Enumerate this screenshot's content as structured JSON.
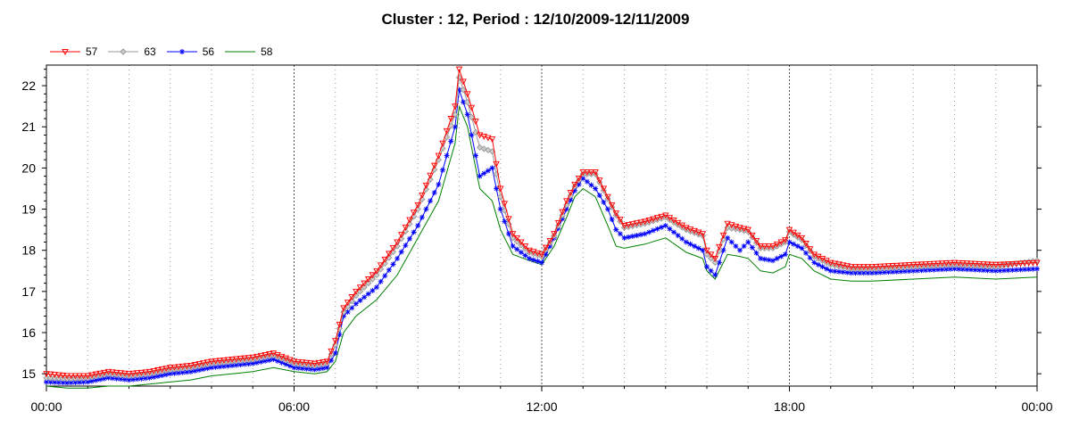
{
  "chart_data": {
    "type": "line",
    "title": "Cluster : 12, Period : 12/10/2009-12/11/2009",
    "xlabel": "",
    "ylabel": "",
    "x_ticks": [
      "00:00",
      "06:00",
      "12:00",
      "18:00",
      "00:00"
    ],
    "y_ticks": [
      15,
      16,
      17,
      18,
      19,
      20,
      21,
      22
    ],
    "xlim_hours": [
      0,
      24
    ],
    "ylim": [
      14.7,
      22.5
    ],
    "grid": true,
    "legend_position": "top-left",
    "x_hours": [
      0,
      0.5,
      1,
      1.5,
      2,
      2.5,
      3,
      3.5,
      4,
      4.5,
      5,
      5.5,
      6,
      6.5,
      6.8,
      7,
      7.2,
      7.5,
      8,
      8.5,
      9,
      9.5,
      9.9,
      10,
      10.2,
      10.5,
      10.8,
      11,
      11.3,
      11.7,
      12,
      12.3,
      12.6,
      12.8,
      13,
      13.3,
      13.6,
      13.8,
      14,
      14.5,
      15,
      15.5,
      15.9,
      16,
      16.2,
      16.5,
      16.8,
      17,
      17.3,
      17.6,
      17.9,
      18,
      18.3,
      18.6,
      19,
      19.5,
      20,
      21,
      22,
      23,
      24
    ],
    "series": [
      {
        "name": "57",
        "color": "#ff0000",
        "marker": "triangle-down",
        "values": [
          15.0,
          14.95,
          14.95,
          15.05,
          15.0,
          15.05,
          15.15,
          15.2,
          15.3,
          15.35,
          15.4,
          15.5,
          15.3,
          15.25,
          15.3,
          15.8,
          16.6,
          17.0,
          17.5,
          18.2,
          19.1,
          20.3,
          21.5,
          22.4,
          21.8,
          20.8,
          20.7,
          19.5,
          18.4,
          18.0,
          17.9,
          18.4,
          19.2,
          19.6,
          19.9,
          19.9,
          19.3,
          18.9,
          18.6,
          18.7,
          18.85,
          18.55,
          18.4,
          18.0,
          17.8,
          18.65,
          18.55,
          18.5,
          18.1,
          18.1,
          18.25,
          18.5,
          18.3,
          17.9,
          17.7,
          17.6,
          17.6,
          17.65,
          17.7,
          17.65,
          17.7
        ]
      },
      {
        "name": "63",
        "color": "#999999",
        "marker": "diamond",
        "values": [
          14.9,
          14.88,
          14.9,
          15.0,
          14.95,
          15.0,
          15.1,
          15.15,
          15.25,
          15.3,
          15.35,
          15.45,
          15.25,
          15.2,
          15.25,
          15.7,
          16.5,
          16.9,
          17.4,
          18.1,
          19.0,
          20.2,
          21.3,
          22.2,
          21.6,
          20.5,
          20.4,
          19.3,
          18.3,
          17.95,
          17.85,
          18.35,
          19.1,
          19.55,
          19.85,
          19.85,
          19.25,
          18.85,
          18.55,
          18.65,
          18.8,
          18.5,
          18.35,
          17.9,
          17.7,
          18.55,
          18.5,
          18.45,
          18.05,
          18.05,
          18.2,
          18.45,
          18.25,
          17.85,
          17.65,
          17.55,
          17.55,
          17.6,
          17.65,
          17.6,
          17.75
        ]
      },
      {
        "name": "56",
        "color": "#0000ff",
        "marker": "star",
        "values": [
          14.8,
          14.78,
          14.8,
          14.9,
          14.85,
          14.9,
          15.0,
          15.05,
          15.15,
          15.2,
          15.25,
          15.35,
          15.15,
          15.1,
          15.15,
          15.5,
          16.4,
          16.7,
          17.1,
          17.8,
          18.6,
          19.6,
          21.0,
          21.9,
          21.3,
          19.8,
          20.0,
          19.0,
          18.1,
          17.8,
          17.7,
          18.3,
          19.0,
          19.45,
          19.75,
          19.5,
          19.0,
          18.5,
          18.3,
          18.4,
          18.6,
          18.2,
          18.0,
          17.6,
          17.4,
          18.3,
          18.0,
          18.2,
          17.8,
          17.75,
          17.9,
          18.2,
          18.05,
          17.7,
          17.5,
          17.45,
          17.45,
          17.5,
          17.55,
          17.5,
          17.55
        ]
      },
      {
        "name": "58",
        "color": "#008000",
        "marker": "none",
        "values": [
          14.7,
          14.65,
          14.65,
          14.7,
          14.7,
          14.75,
          14.8,
          14.85,
          14.95,
          15.0,
          15.05,
          15.15,
          15.05,
          15.0,
          15.05,
          15.3,
          16.0,
          16.4,
          16.8,
          17.4,
          18.3,
          19.2,
          20.6,
          21.5,
          21.0,
          19.5,
          19.2,
          18.5,
          17.9,
          17.75,
          17.65,
          18.1,
          18.8,
          19.3,
          19.5,
          19.3,
          18.6,
          18.1,
          18.05,
          18.15,
          18.3,
          17.95,
          17.8,
          17.5,
          17.3,
          17.9,
          17.85,
          17.8,
          17.5,
          17.45,
          17.6,
          17.9,
          17.8,
          17.5,
          17.3,
          17.25,
          17.25,
          17.3,
          17.35,
          17.3,
          17.35
        ]
      }
    ]
  }
}
